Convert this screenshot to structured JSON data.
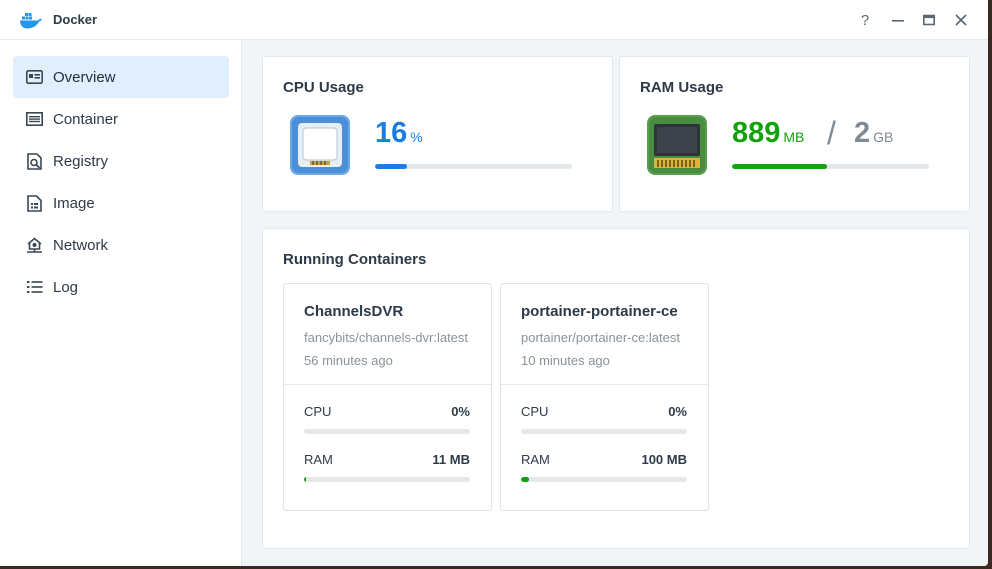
{
  "app": {
    "title": "Docker",
    "icon": "docker-whale-icon"
  },
  "window_controls": {
    "help": "?",
    "minimize": "—",
    "maximize": "▭",
    "close": "✕"
  },
  "sidebar": {
    "items": [
      {
        "label": "Overview",
        "icon": "overview-icon",
        "active": true
      },
      {
        "label": "Container",
        "icon": "container-icon",
        "active": false
      },
      {
        "label": "Registry",
        "icon": "registry-icon",
        "active": false
      },
      {
        "label": "Image",
        "icon": "image-icon",
        "active": false
      },
      {
        "label": "Network",
        "icon": "network-icon",
        "active": false
      },
      {
        "label": "Log",
        "icon": "log-icon",
        "active": false
      }
    ]
  },
  "cpu": {
    "title": "CPU Usage",
    "value": "16",
    "unit": "%",
    "percent": 16,
    "color": "#1a7de0"
  },
  "ram": {
    "title": "RAM Usage",
    "used": "889",
    "used_unit": "MB",
    "separator": "/",
    "total": "2",
    "total_unit": "GB",
    "percent": 48,
    "color": "#13a10e"
  },
  "running": {
    "title": "Running Containers",
    "containers": [
      {
        "name": "ChannelsDVR",
        "image": "fancybits/channels-dvr:latest",
        "time": "56 minutes ago",
        "cpu_label": "CPU",
        "cpu_value": "0%",
        "cpu_percent": 0,
        "ram_label": "RAM",
        "ram_value": "11 MB",
        "ram_percent": 1
      },
      {
        "name": "portainer-portainer-ce",
        "image": "portainer/portainer-ce:latest",
        "time": "10 minutes ago",
        "cpu_label": "CPU",
        "cpu_value": "0%",
        "cpu_percent": 0,
        "ram_label": "RAM",
        "ram_value": "100 MB",
        "ram_percent": 5
      }
    ]
  }
}
